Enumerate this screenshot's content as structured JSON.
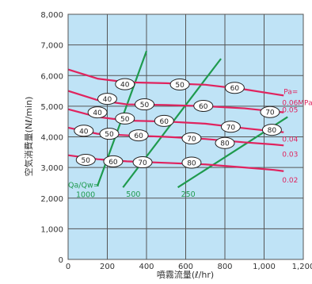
{
  "chart_data": {
    "type": "line",
    "title": "",
    "xlabel": "噴霧流量(ℓ/hr)",
    "ylabel": "空気消費量(Nℓ/min)",
    "xlim": [
      0,
      1200
    ],
    "ylim": [
      0,
      8000
    ],
    "x_ticks": [
      "0",
      "200",
      "400",
      "600",
      "800",
      "1,000",
      "1,200"
    ],
    "y_ticks": [
      "0",
      "1,000",
      "2,000",
      "3,000",
      "4,000",
      "5,000",
      "6,000",
      "7,000",
      "8,000"
    ],
    "grid": true,
    "background_color": "#bfe3f6",
    "pressure_color": "#e0235e",
    "ratio_color": "#1e9a4d",
    "pressure_unit": "Pa=",
    "pressure_series": [
      {
        "label": "0.06MPa",
        "x": [
          0,
          150,
          300,
          500,
          700,
          900,
          1050,
          1100
        ],
        "y": [
          6200,
          5900,
          5780,
          5750,
          5700,
          5550,
          5400,
          5350
        ]
      },
      {
        "label": "0.05",
        "x": [
          0,
          150,
          300,
          500,
          700,
          900,
          1050,
          1100
        ],
        "y": [
          5500,
          5200,
          5060,
          5040,
          5000,
          4930,
          4830,
          4800
        ]
      },
      {
        "label": "0.04",
        "x": [
          0,
          150,
          300,
          500,
          700,
          900,
          1050,
          1100
        ],
        "y": [
          4900,
          4650,
          4530,
          4500,
          4430,
          4280,
          4180,
          4150
        ]
      },
      {
        "label": "0.03",
        "x": [
          0,
          150,
          300,
          500,
          700,
          900,
          1050,
          1100
        ],
        "y": [
          4300,
          4100,
          4050,
          4000,
          3930,
          3820,
          3750,
          3720
        ]
      },
      {
        "label": "0.02",
        "x": [
          0,
          150,
          300,
          500,
          700,
          900,
          1050,
          1100
        ],
        "y": [
          3400,
          3270,
          3200,
          3150,
          3100,
          3000,
          2920,
          2880
        ]
      }
    ],
    "ratio_lines": [
      {
        "label": "1000",
        "prefix": "Qa/Qw=",
        "x": [
          150,
          400
        ],
        "y": [
          2400,
          6800
        ]
      },
      {
        "label": "500",
        "prefix": "",
        "x": [
          280,
          780
        ],
        "y": [
          2350,
          6550
        ]
      },
      {
        "label": "250",
        "prefix": "",
        "x": [
          560,
          1120
        ],
        "y": [
          2350,
          4650
        ]
      }
    ],
    "ovals": [
      {
        "text": "40",
        "x": 290,
        "y": 5720
      },
      {
        "text": "50",
        "x": 570,
        "y": 5710
      },
      {
        "text": "60",
        "x": 850,
        "y": 5600
      },
      {
        "text": "40",
        "x": 200,
        "y": 5240
      },
      {
        "text": "50",
        "x": 390,
        "y": 5060
      },
      {
        "text": "60",
        "x": 690,
        "y": 5010
      },
      {
        "text": "70",
        "x": 1030,
        "y": 4810
      },
      {
        "text": "40",
        "x": 150,
        "y": 4800
      },
      {
        "text": "50",
        "x": 290,
        "y": 4600
      },
      {
        "text": "60",
        "x": 490,
        "y": 4520
      },
      {
        "text": "70",
        "x": 830,
        "y": 4330
      },
      {
        "text": "40",
        "x": 80,
        "y": 4200
      },
      {
        "text": "50",
        "x": 210,
        "y": 4100
      },
      {
        "text": "60",
        "x": 360,
        "y": 4050
      },
      {
        "text": "70",
        "x": 630,
        "y": 3950
      },
      {
        "text": "80",
        "x": 800,
        "y": 3800
      },
      {
        "text": "80",
        "x": 1040,
        "y": 4230
      },
      {
        "text": "50",
        "x": 90,
        "y": 3250
      },
      {
        "text": "60",
        "x": 230,
        "y": 3200
      },
      {
        "text": "70",
        "x": 380,
        "y": 3170
      },
      {
        "text": "80",
        "x": 630,
        "y": 3160
      }
    ]
  }
}
